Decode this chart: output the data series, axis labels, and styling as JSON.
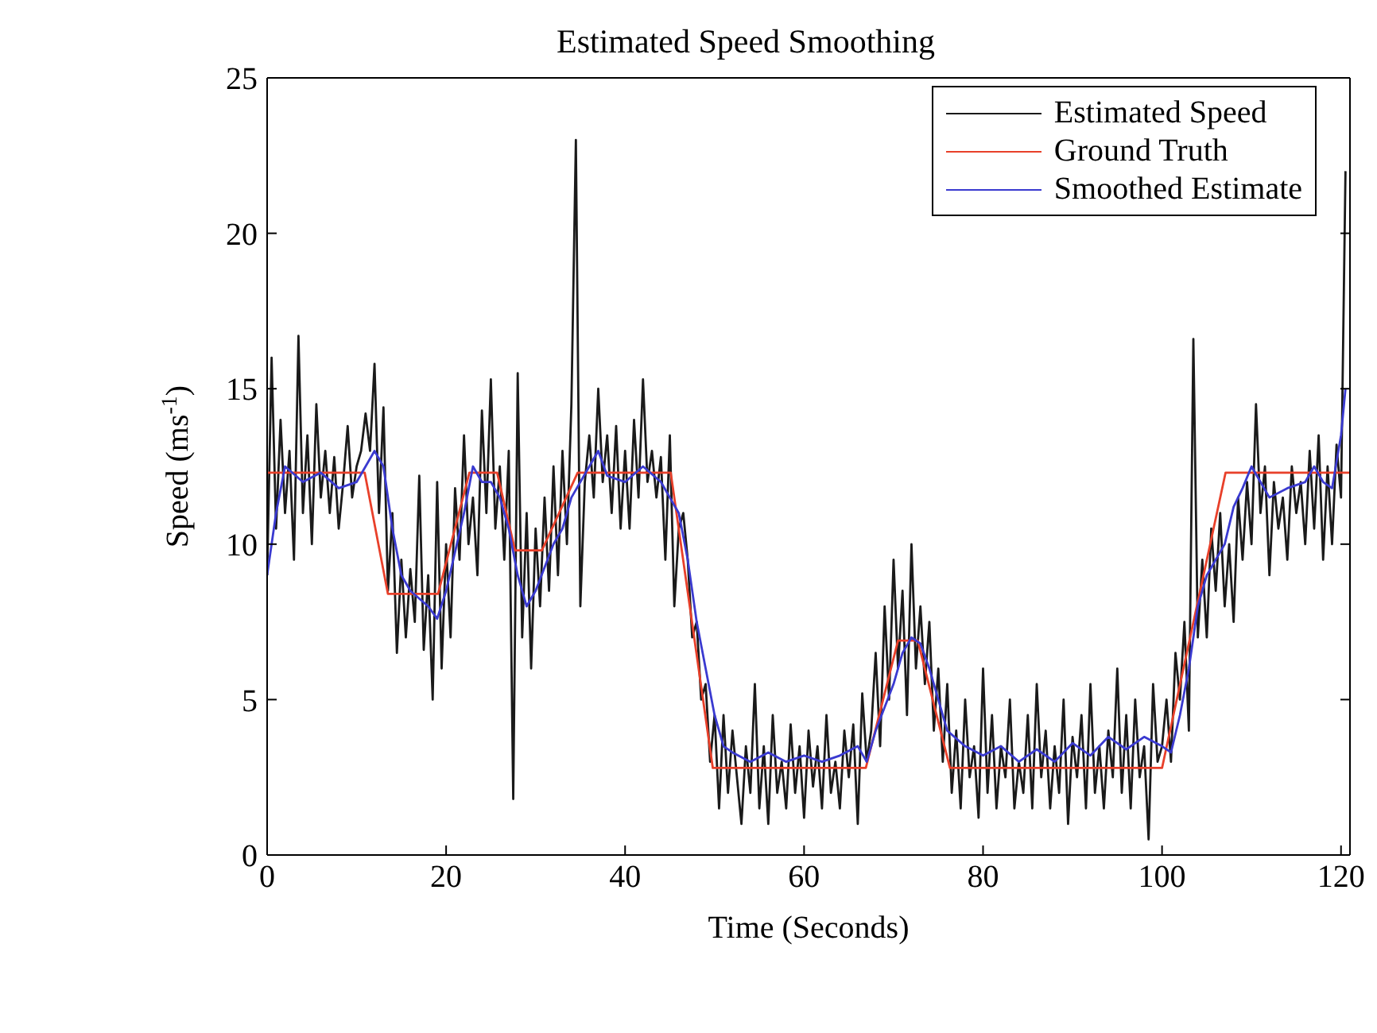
{
  "chart_data": {
    "type": "line",
    "title": "Estimated Speed Smoothing",
    "xlabel": "Time (Seconds)",
    "ylabel": "Speed (ms$^{-1}$)",
    "xlim": [
      0,
      121
    ],
    "xticks": [
      0,
      20,
      40,
      60,
      80,
      100,
      120
    ],
    "ylim": [
      0,
      25
    ],
    "yticks": [
      0,
      5,
      10,
      15,
      20,
      25
    ],
    "legend": "top right",
    "marker": "none",
    "series": [
      {
        "name": "Estimated Speed",
        "color": "#1a1a1a",
        "x": [
          0,
          0.5,
          1,
          1.5,
          2,
          2.5,
          3,
          3.5,
          4,
          4.5,
          5,
          5.5,
          6,
          6.5,
          7,
          7.5,
          8,
          8.5,
          9,
          9.5,
          10,
          10.5,
          11,
          11.5,
          12,
          12.5,
          13,
          13.5,
          14,
          14.5,
          15,
          15.5,
          16,
          16.5,
          17,
          17.5,
          18,
          18.5,
          19,
          19.5,
          20,
          20.5,
          21,
          21.5,
          22,
          22.5,
          23,
          23.5,
          24,
          24.5,
          25,
          25.5,
          26,
          26.5,
          27,
          27.5,
          28,
          28.5,
          29,
          29.5,
          30,
          30.5,
          31,
          31.5,
          32,
          32.5,
          33,
          33.5,
          34,
          34.5,
          35,
          35.5,
          36,
          36.5,
          37,
          37.5,
          38,
          38.5,
          39,
          39.5,
          40,
          40.5,
          41,
          41.5,
          42,
          42.5,
          43,
          43.5,
          44,
          44.5,
          45,
          45.5,
          46,
          46.5,
          47,
          47.5,
          48,
          48.5,
          49,
          49.5,
          50,
          50.5,
          51,
          51.5,
          52,
          52.5,
          53,
          53.5,
          54,
          54.5,
          55,
          55.5,
          56,
          56.5,
          57,
          57.5,
          58,
          58.5,
          59,
          59.5,
          60,
          60.5,
          61,
          61.5,
          62,
          62.5,
          63,
          63.5,
          64,
          64.5,
          65,
          65.5,
          66,
          66.5,
          67,
          67.5,
          68,
          68.5,
          69,
          69.5,
          70,
          70.5,
          71,
          71.5,
          72,
          72.5,
          73,
          73.5,
          74,
          74.5,
          75,
          75.5,
          76,
          76.5,
          77,
          77.5,
          78,
          78.5,
          79,
          79.5,
          80,
          80.5,
          81,
          81.5,
          82,
          82.5,
          83,
          83.5,
          84,
          84.5,
          85,
          85.5,
          86,
          86.5,
          87,
          87.5,
          88,
          88.5,
          89,
          89.5,
          90,
          90.5,
          91,
          91.5,
          92,
          92.5,
          93,
          93.5,
          94,
          94.5,
          95,
          95.5,
          96,
          96.5,
          97,
          97.5,
          98,
          98.5,
          99,
          99.5,
          100,
          100.5,
          101,
          101.5,
          102,
          102.5,
          103,
          103.5,
          104,
          104.5,
          105,
          105.5,
          106,
          106.5,
          107,
          107.5,
          108,
          108.5,
          109,
          109.5,
          110,
          110.5,
          111,
          111.5,
          112,
          112.5,
          113,
          113.5,
          114,
          114.5,
          115,
          115.5,
          116,
          116.5,
          117,
          117.5,
          118,
          118.5,
          119,
          119.5,
          120,
          120.5
        ],
        "values": [
          9,
          16,
          10.5,
          14,
          11,
          13,
          9.5,
          16.7,
          11,
          13.5,
          10,
          14.5,
          11.5,
          13,
          11,
          12.8,
          10.5,
          12,
          13.8,
          11.5,
          12.5,
          13,
          14.2,
          13,
          15.8,
          11,
          14.4,
          8.5,
          11,
          6.5,
          9.5,
          7,
          9.2,
          7.5,
          12.2,
          6.6,
          9,
          5,
          12,
          6,
          10,
          7,
          11.8,
          9.5,
          13.5,
          10,
          11.5,
          9,
          14.3,
          11,
          15.3,
          10.5,
          12.5,
          9.5,
          13,
          1.8,
          15.5,
          7,
          11,
          6,
          10.5,
          8,
          11.5,
          8.5,
          12.5,
          9,
          13,
          10,
          14.5,
          23,
          8,
          12,
          13.5,
          11.5,
          15,
          12,
          13.5,
          11,
          13.8,
          10.5,
          13,
          10.5,
          14,
          11.5,
          15.3,
          12,
          13,
          11.5,
          12.8,
          9.5,
          13.5,
          8,
          10.5,
          11,
          9.5,
          7,
          7.5,
          5,
          5.5,
          3,
          4.5,
          1.5,
          4.5,
          2,
          4,
          2.5,
          1,
          3.5,
          2,
          5.5,
          1.5,
          3.5,
          1,
          4.5,
          2,
          3,
          1.5,
          4.2,
          2,
          3.5,
          1.2,
          4,
          2.2,
          3.5,
          1.5,
          4.5,
          2,
          3,
          1.5,
          4,
          2.5,
          4.2,
          1,
          5.2,
          3,
          4,
          6.5,
          3.5,
          8,
          5,
          9.5,
          6,
          8.5,
          4.5,
          10,
          6,
          8,
          5.5,
          7.5,
          4,
          6,
          3,
          5.5,
          2,
          4,
          1.5,
          5,
          2.5,
          3.5,
          1.2,
          6,
          2,
          4.5,
          1.5,
          3.5,
          2.5,
          5,
          1.5,
          3,
          2,
          4.5,
          1.5,
          5.5,
          2.5,
          4,
          1.5,
          3.5,
          2,
          5,
          1,
          3.8,
          2.5,
          4.5,
          1.5,
          5.5,
          2,
          3.5,
          1.5,
          4,
          2.5,
          6,
          2,
          4.5,
          1.5,
          5,
          2.5,
          3.5,
          0.5,
          5.5,
          3,
          3.5,
          5,
          3,
          6.5,
          5,
          7.5,
          4,
          16.6,
          7,
          9.5,
          7,
          10.5,
          8.5,
          11,
          8,
          10,
          7.5,
          11.5,
          9.5,
          12,
          10,
          14.5,
          11,
          12.5,
          9,
          12,
          10.5,
          11.5,
          9.5,
          12.5,
          11,
          12,
          10,
          13,
          10.5,
          13.5,
          9.5,
          12.5,
          10,
          13.2,
          11.5,
          22
        ]
      },
      {
        "name": "Ground Truth",
        "color": "#e8402a",
        "x": [
          0,
          10.9,
          13.5,
          19.1,
          22.6,
          25.7,
          27.7,
          30.7,
          34.7,
          45.1,
          49.8,
          66.9,
          70.5,
          72.7,
          76.3,
          100,
          107.1,
          121
        ],
        "values": [
          12.3,
          12.3,
          8.4,
          8.4,
          12.3,
          12.3,
          9.8,
          9.8,
          12.3,
          12.3,
          2.8,
          2.8,
          6.9,
          6.9,
          2.8,
          2.8,
          12.3,
          12.3
        ]
      },
      {
        "name": "Smoothed Estimate",
        "color": "#3a3ad0",
        "x": [
          0,
          1,
          2,
          4,
          6,
          8,
          10,
          12,
          13,
          14,
          15,
          16,
          18,
          19,
          20,
          22,
          23,
          24,
          25,
          26,
          27,
          28,
          29,
          30,
          32,
          33,
          34,
          36,
          37,
          38,
          40,
          42,
          44,
          45,
          46,
          47,
          48,
          49,
          50,
          51,
          52,
          54,
          56,
          58,
          60,
          62,
          64,
          66,
          67,
          68,
          70,
          71,
          72,
          73,
          74,
          75,
          76,
          78,
          80,
          82,
          84,
          86,
          88,
          90,
          92,
          94,
          96,
          98,
          100,
          101,
          102,
          103,
          104,
          105,
          106,
          107,
          108,
          109,
          110,
          111,
          112,
          114,
          116,
          117,
          118,
          119,
          120,
          120.5
        ],
        "values": [
          9,
          11,
          12.5,
          12,
          12.3,
          11.8,
          12,
          13,
          12.5,
          10.5,
          9,
          8.5,
          8,
          7.6,
          8.5,
          11,
          12.5,
          12,
          12,
          11.5,
          10.5,
          9,
          8,
          8.5,
          10,
          10.5,
          11.5,
          12.5,
          13,
          12.2,
          12,
          12.5,
          12,
          11.5,
          11,
          9.5,
          7.5,
          6,
          4.5,
          3.5,
          3.3,
          3,
          3.3,
          3,
          3.2,
          3,
          3.2,
          3.5,
          3,
          4,
          5.5,
          6.5,
          7,
          6.8,
          6,
          5,
          4,
          3.5,
          3.2,
          3.5,
          3,
          3.4,
          3,
          3.6,
          3.2,
          3.8,
          3.4,
          3.8,
          3.5,
          3.3,
          4.5,
          6,
          8,
          9,
          9.5,
          10,
          11.2,
          11.8,
          12.5,
          12,
          11.5,
          11.8,
          12,
          12.5,
          12,
          11.8,
          13.5,
          15
        ]
      }
    ]
  }
}
